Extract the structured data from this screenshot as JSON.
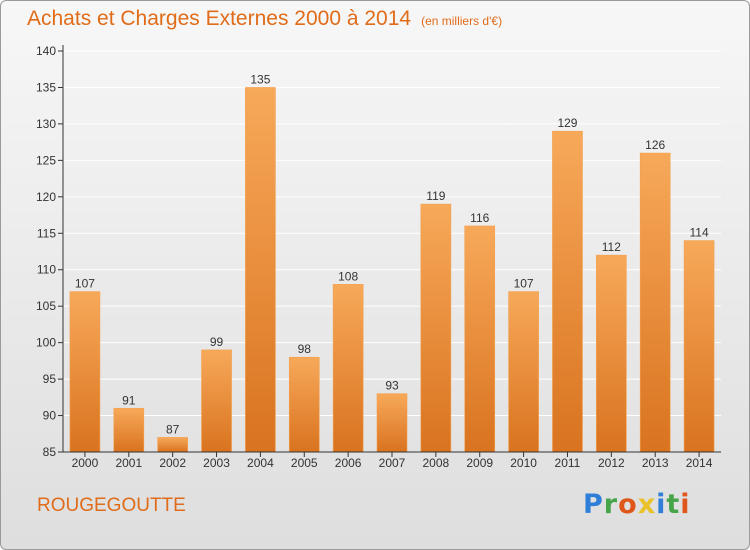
{
  "page": {
    "title": "Achats et Charges Externes 2000 à 2014",
    "subtitle": "(en milliers d'€)",
    "town": "ROUGEGOUTTE",
    "logo": {
      "letters": [
        "P",
        "r",
        "o",
        "x",
        "i",
        "t",
        "i"
      ],
      "colors": [
        "#2f7fd8",
        "#46a548",
        "#e0571b",
        "#e9c228",
        "#2f7fd8",
        "#46a548",
        "#e0571b"
      ]
    }
  },
  "colors": {
    "bar_top": "#f7a95a",
    "bar_bottom": "#d9731f",
    "bar_stroke": "#f4a04c",
    "title": "#e06c1a",
    "axis": "#333333",
    "grid": "#ffffff"
  },
  "chart_data": {
    "type": "bar",
    "categories": [
      "2000",
      "2001",
      "2002",
      "2003",
      "2004",
      "2005",
      "2006",
      "2007",
      "2008",
      "2009",
      "2010",
      "2011",
      "2012",
      "2013",
      "2014"
    ],
    "values": [
      107,
      91,
      87,
      99,
      135,
      98,
      108,
      93,
      119,
      116,
      107,
      129,
      112,
      126,
      114
    ],
    "ylim": [
      85,
      140
    ],
    "yticks": [
      85,
      90,
      95,
      100,
      105,
      110,
      115,
      120,
      125,
      130,
      135,
      140
    ],
    "grid": true,
    "data_labels": true
  }
}
